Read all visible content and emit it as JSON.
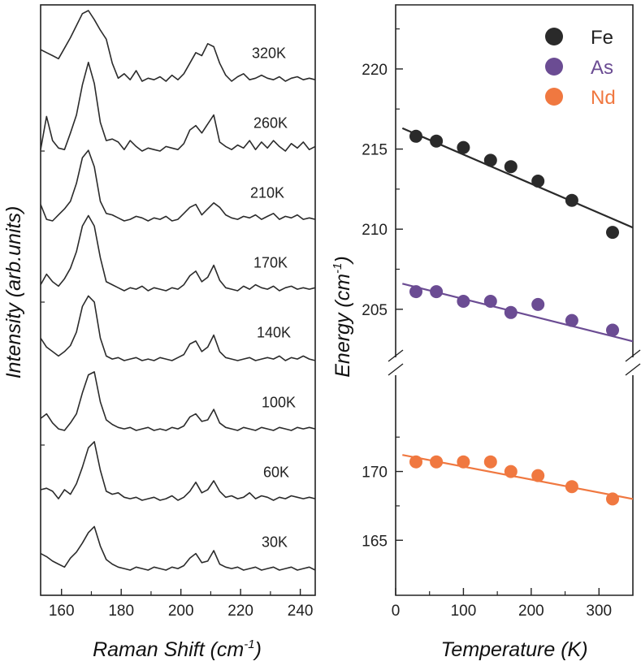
{
  "chart_data": [
    {
      "type": "line",
      "title": "",
      "xlabel": "Raman Shift (cm",
      "xlabel_sup": "-1",
      "xlabel_close": ")",
      "ylabel": "Intensity (arb.units)",
      "xlim": [
        153,
        245
      ],
      "xticks": [
        160,
        180,
        200,
        220,
        240
      ],
      "xtick_labels": [
        "160",
        "180",
        "200",
        "220",
        "240"
      ],
      "color": "#2b2b2b",
      "x": [
        153,
        155,
        157,
        159,
        161,
        163,
        165,
        167,
        169,
        171,
        173,
        175,
        177,
        179,
        181,
        183,
        185,
        187,
        189,
        191,
        193,
        195,
        197,
        199,
        201,
        203,
        205,
        207,
        209,
        211,
        213,
        215,
        217,
        219,
        221,
        223,
        225,
        227,
        229,
        231,
        233,
        235,
        237,
        239,
        241,
        243,
        245
      ],
      "spectra": [
        {
          "label": "320K",
          "offset": 7.0,
          "values": [
            1.05,
            0.95,
            0.85,
            0.75,
            1.1,
            1.45,
            1.85,
            2.25,
            2.35,
            2.05,
            1.7,
            1.4,
            0.6,
            0.1,
            0.25,
            0.05,
            0.35,
            0.0,
            0.1,
            0.05,
            0.15,
            0.0,
            0.2,
            0.05,
            0.25,
            0.6,
            0.95,
            0.85,
            1.25,
            1.15,
            0.6,
            0.2,
            0.0,
            0.15,
            0.25,
            0.05,
            0.1,
            0.2,
            0.1,
            0.05,
            0.15,
            0.0,
            0.1,
            0.15,
            0.05,
            0.1,
            0.05
          ]
        },
        {
          "label": "260K",
          "offset": 6.0,
          "values": [
            0.05,
            1.15,
            0.35,
            0.1,
            0.05,
            0.6,
            1.2,
            2.2,
            2.95,
            2.25,
            0.95,
            0.35,
            0.4,
            0.3,
            0.05,
            0.35,
            0.15,
            0.0,
            0.1,
            0.05,
            0.0,
            0.15,
            0.1,
            0.05,
            0.25,
            0.7,
            0.85,
            0.6,
            0.9,
            1.2,
            0.3,
            0.15,
            0.05,
            0.2,
            0.1,
            0.35,
            0.05,
            0.3,
            0.1,
            0.35,
            0.15,
            0.0,
            0.25,
            0.1,
            0.3,
            0.05,
            0.15
          ]
        },
        {
          "label": "210K",
          "offset": 5.0,
          "values": [
            0.55,
            0.05,
            0.0,
            0.2,
            0.4,
            0.65,
            1.25,
            2.1,
            2.35,
            1.8,
            0.65,
            0.25,
            0.2,
            0.1,
            0.0,
            0.05,
            0.15,
            0.1,
            0.0,
            0.1,
            0.05,
            0.15,
            0.0,
            0.05,
            0.25,
            0.45,
            0.55,
            0.2,
            0.4,
            0.6,
            0.45,
            0.2,
            0.1,
            0.05,
            0.15,
            0.1,
            0.2,
            0.05,
            0.15,
            0.25,
            0.05,
            0.15,
            0.1,
            0.2,
            0.05,
            0.1,
            0.05
          ]
        },
        {
          "label": "170K",
          "offset": 4.0,
          "values": [
            0.2,
            0.55,
            0.3,
            0.15,
            0.4,
            0.75,
            1.3,
            2.15,
            2.5,
            2.15,
            1.1,
            0.3,
            0.2,
            0.1,
            0.0,
            0.1,
            0.05,
            0.15,
            0.0,
            0.1,
            0.05,
            0.0,
            0.1,
            0.05,
            0.2,
            0.5,
            0.65,
            0.3,
            0.45,
            0.85,
            0.35,
            0.1,
            0.05,
            0.0,
            0.15,
            0.05,
            0.2,
            0.1,
            0.05,
            0.15,
            0.0,
            0.1,
            0.15,
            0.05,
            0.1,
            0.05,
            0.1
          ]
        },
        {
          "label": "140K",
          "offset": 3.0,
          "values": [
            0.75,
            0.45,
            0.3,
            0.15,
            0.3,
            0.5,
            0.95,
            1.8,
            2.15,
            1.95,
            0.75,
            0.15,
            0.05,
            0.1,
            0.0,
            0.05,
            0.1,
            0.0,
            0.05,
            0.0,
            0.1,
            0.05,
            0.0,
            0.1,
            0.2,
            0.55,
            0.65,
            0.3,
            0.45,
            0.85,
            0.3,
            0.1,
            0.05,
            0.0,
            0.05,
            0.1,
            0.0,
            0.05,
            0.1,
            0.05,
            0.15,
            0.0,
            0.1,
            0.05,
            0.15,
            0.05,
            0.0
          ]
        },
        {
          "label": "100K",
          "offset": 2.0,
          "values": [
            0.4,
            0.55,
            0.25,
            0.05,
            0.0,
            0.25,
            0.55,
            1.25,
            1.85,
            1.95,
            0.95,
            0.35,
            0.2,
            0.1,
            0.05,
            0.1,
            0.0,
            0.05,
            0.1,
            0.0,
            0.05,
            0.0,
            0.1,
            0.05,
            0.15,
            0.45,
            0.55,
            0.3,
            0.35,
            0.7,
            0.25,
            0.1,
            0.05,
            0.0,
            0.1,
            0.05,
            0.0,
            0.1,
            0.05,
            0.0,
            0.1,
            0.05,
            0.0,
            0.1,
            0.05,
            0.1,
            0.05
          ]
        },
        {
          "label": "60K",
          "offset": 1.0,
          "values": [
            0.35,
            0.4,
            0.3,
            0.05,
            0.35,
            0.2,
            0.55,
            1.1,
            1.75,
            1.95,
            1.0,
            0.3,
            0.2,
            0.25,
            0.1,
            0.05,
            0.1,
            0.0,
            0.05,
            0.1,
            0.0,
            0.05,
            0.15,
            0.0,
            0.1,
            0.3,
            0.6,
            0.25,
            0.35,
            0.65,
            0.3,
            0.1,
            0.15,
            0.05,
            0.1,
            0.25,
            0.05,
            0.15,
            0.1,
            0.0,
            0.1,
            0.05,
            0.15,
            0.1,
            0.05,
            0.1,
            0.05
          ]
        },
        {
          "label": "30K",
          "offset": 0.0,
          "values": [
            0.55,
            0.45,
            0.3,
            0.2,
            0.1,
            0.4,
            0.6,
            0.9,
            1.25,
            1.45,
            0.8,
            0.35,
            0.2,
            0.1,
            0.05,
            0.0,
            0.1,
            0.05,
            0.0,
            0.1,
            0.05,
            0.0,
            0.1,
            0.05,
            0.15,
            0.4,
            0.55,
            0.25,
            0.3,
            0.65,
            0.2,
            0.1,
            0.05,
            0.1,
            0.0,
            0.05,
            0.1,
            0.0,
            0.05,
            0.1,
            0.0,
            0.05,
            0.1,
            0.0,
            0.05,
            0.1,
            0.0
          ]
        }
      ]
    },
    {
      "type": "scatter",
      "title": "",
      "xlabel": "Temperature (K)",
      "ylabel": "Energy (cm",
      "ylabel_sup": "-1",
      "ylabel_close": ")",
      "xlim": [
        0,
        350
      ],
      "xticks": [
        0,
        100,
        200,
        300
      ],
      "xtick_labels": [
        "0",
        "100",
        "200",
        "300"
      ],
      "axis_break": true,
      "upper_ylim": [
        202,
        224
      ],
      "upper_yticks": [
        205,
        210,
        215,
        220
      ],
      "upper_ytick_labels": [
        "205",
        "210",
        "215",
        "220"
      ],
      "lower_ylim": [
        161,
        177
      ],
      "lower_yticks": [
        165,
        170
      ],
      "lower_ytick_labels": [
        "165",
        "170"
      ],
      "legend_position": "top-right",
      "series": [
        {
          "name": "Fe",
          "color": "#2a2a2a",
          "panel": "upper",
          "x": [
            30,
            60,
            100,
            140,
            170,
            210,
            260,
            320
          ],
          "y": [
            215.8,
            215.5,
            215.1,
            214.3,
            213.9,
            213.0,
            211.8,
            209.8
          ],
          "fit": {
            "x": [
              10,
              350
            ],
            "y": [
              216.3,
              210.1
            ]
          }
        },
        {
          "name": "As",
          "color": "#6b4c93",
          "panel": "upper",
          "x": [
            30,
            60,
            100,
            140,
            170,
            210,
            260,
            320
          ],
          "y": [
            206.1,
            206.1,
            205.5,
            205.5,
            204.8,
            205.3,
            204.3,
            203.7
          ],
          "fit": {
            "x": [
              10,
              350
            ],
            "y": [
              206.6,
              203.0
            ]
          }
        },
        {
          "name": "Nd",
          "color": "#f07840",
          "panel": "lower",
          "x": [
            30,
            60,
            100,
            140,
            170,
            210,
            260,
            320
          ],
          "y": [
            170.7,
            170.7,
            170.7,
            170.7,
            170.0,
            169.7,
            168.9,
            168.0
          ],
          "fit": {
            "x": [
              10,
              350
            ],
            "y": [
              171.2,
              168.0
            ]
          }
        }
      ]
    }
  ]
}
